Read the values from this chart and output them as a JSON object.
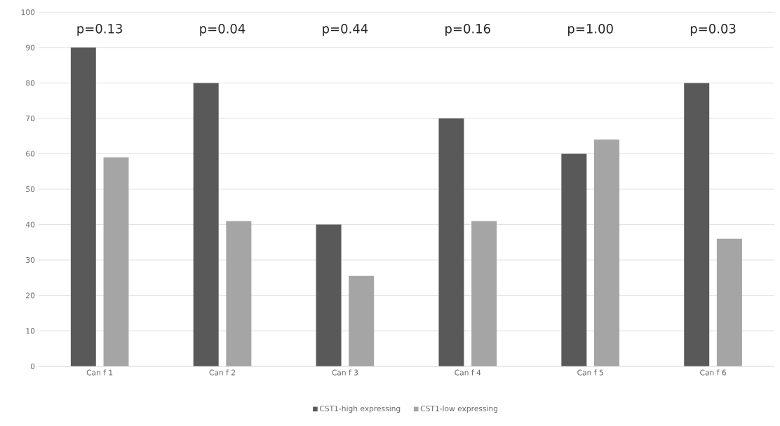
{
  "chart_data": {
    "type": "bar",
    "categories": [
      "Can f 1",
      "Can f 2",
      "Can f 3",
      "Can f 4",
      "Can f 5",
      "Can f 6"
    ],
    "series": [
      {
        "name": "CST1-high expressing",
        "color": "#595959",
        "values": [
          90,
          80,
          40,
          70,
          60,
          80
        ]
      },
      {
        "name": "CST1-low expressing",
        "color": "#a5a5a5",
        "values": [
          59,
          41,
          25.5,
          41,
          64,
          36
        ]
      }
    ],
    "ylim": [
      0,
      100
    ],
    "yticks": [
      0,
      10,
      20,
      30,
      40,
      50,
      60,
      70,
      80,
      90,
      100
    ],
    "grid": "y",
    "legend": "bottom",
    "annotations": [
      "p=0.13",
      "p=0.04",
      "p=0.44",
      "p=0.16",
      "p=1.00",
      "p=0.03"
    ]
  }
}
